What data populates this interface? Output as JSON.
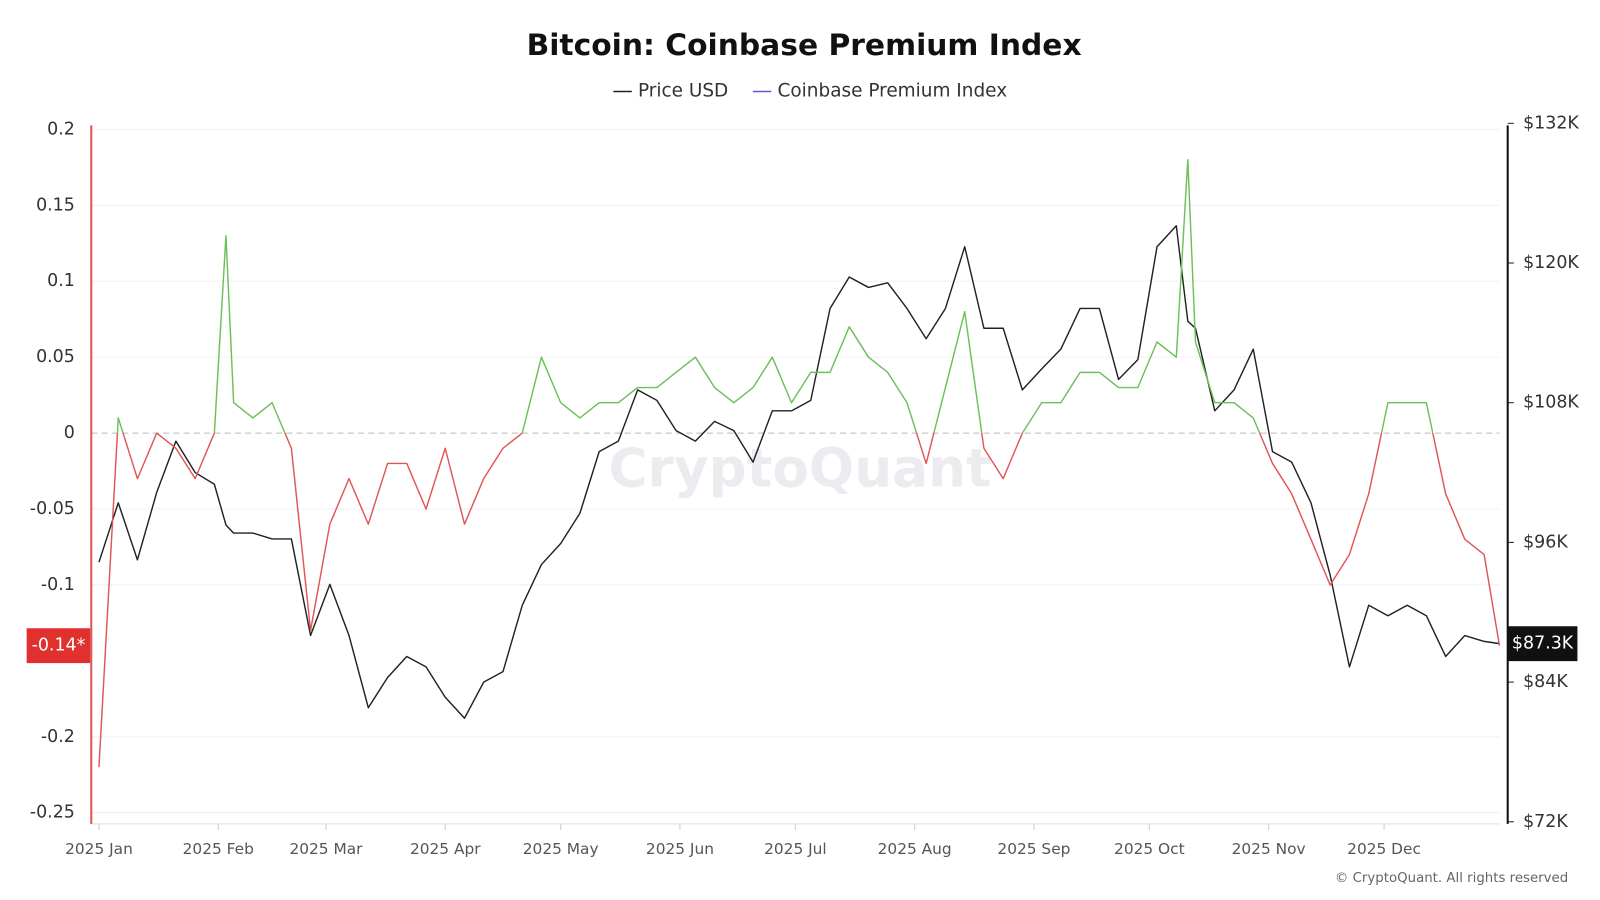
{
  "chart_data": {
    "type": "line",
    "title": "Bitcoin: Coinbase Premium Index",
    "watermark": "CryptoQuant",
    "copyright": "© CryptoQuant. All rights reserved",
    "y_marker_label": "-0.14*",
    "y2_marker_label": "$87.3K",
    "x": [
      0,
      5,
      10,
      15,
      20,
      25,
      30,
      33,
      35,
      40,
      45,
      50,
      55,
      60,
      65,
      70,
      75,
      80,
      85,
      90,
      95,
      100,
      105,
      110,
      115,
      120,
      125,
      130,
      135,
      140,
      145,
      150,
      155,
      160,
      165,
      170,
      175,
      180,
      185,
      190,
      195,
      200,
      205,
      210,
      215,
      220,
      225,
      230,
      235,
      240,
      245,
      250,
      255,
      260,
      265,
      270,
      275,
      280,
      283,
      285,
      290,
      295,
      300,
      305,
      310,
      315,
      320,
      325,
      330,
      335,
      340,
      345,
      350,
      355,
      360,
      364
    ],
    "xlim": [
      -2,
      364
    ],
    "xticks": [
      {
        "value": 0,
        "label": "2025 Jan"
      },
      {
        "value": 31,
        "label": "2025 Feb"
      },
      {
        "value": 59,
        "label": "2025 Mar"
      },
      {
        "value": 90,
        "label": "2025 Apr"
      },
      {
        "value": 120,
        "label": "2025 May"
      },
      {
        "value": 151,
        "label": "2025 Jun"
      },
      {
        "value": 181,
        "label": "2025 Jul"
      },
      {
        "value": 212,
        "label": "2025 Aug"
      },
      {
        "value": 243,
        "label": "2025 Sep"
      },
      {
        "value": 273,
        "label": "2025 Oct"
      },
      {
        "value": 304,
        "label": "2025 Nov"
      },
      {
        "value": 334,
        "label": "2025 Dec"
      }
    ],
    "ylim": [
      -0.256,
      0.204
    ],
    "yticks": [
      0.2,
      0.15,
      0.1,
      0.05,
      0,
      -0.05,
      -0.1,
      -0.2,
      -0.25
    ],
    "y2lim": [
      72000,
      132000
    ],
    "y2ticks": [
      {
        "value": 132000,
        "label": "$132K"
      },
      {
        "value": 120000,
        "label": "$120K"
      },
      {
        "value": 108000,
        "label": "$108K"
      },
      {
        "value": 96000,
        "label": "$96K"
      },
      {
        "value": 84000,
        "label": "$84K"
      },
      {
        "value": 72000,
        "label": "$72K"
      }
    ],
    "grid": true,
    "legend": "top",
    "series": [
      {
        "name": "Price USD",
        "color": "#222222",
        "axis": "y2",
        "values": [
          94300,
          99400,
          94500,
          100300,
          104700,
          102000,
          101000,
          97500,
          96800,
          96800,
          96300,
          96300,
          88000,
          92400,
          88000,
          81800,
          84400,
          86200,
          85300,
          82700,
          80900,
          84000,
          84900,
          90600,
          94100,
          95900,
          98500,
          103800,
          104700,
          109100,
          108200,
          105600,
          104700,
          106400,
          105600,
          102900,
          107300,
          107300,
          108200,
          116100,
          118800,
          117900,
          118300,
          116100,
          113500,
          116100,
          121400,
          114400,
          114400,
          109100,
          110900,
          112600,
          116100,
          116100,
          110000,
          111700,
          121400,
          123200,
          115000,
          114400,
          107300,
          109100,
          112600,
          103800,
          102900,
          99400,
          93200,
          85300,
          90600,
          89700,
          90600,
          89700,
          86200,
          88000,
          87500,
          87300
        ]
      },
      {
        "name": "Coinbase Premium Index",
        "color": "#5b5bd6",
        "positive_color": "#6dbf5a",
        "negative_color": "#e05555",
        "values": [
          -0.22,
          0.01,
          -0.03,
          0.0,
          -0.01,
          -0.03,
          0.0,
          0.13,
          0.02,
          0.01,
          0.02,
          -0.01,
          -0.13,
          -0.06,
          -0.03,
          -0.06,
          -0.02,
          -0.02,
          -0.05,
          -0.01,
          -0.06,
          -0.03,
          -0.01,
          0.0,
          0.05,
          0.02,
          0.01,
          0.02,
          0.02,
          0.03,
          0.03,
          0.04,
          0.05,
          0.03,
          0.02,
          0.03,
          0.05,
          0.02,
          0.04,
          0.04,
          0.07,
          0.05,
          0.04,
          0.02,
          -0.02,
          0.03,
          0.08,
          -0.01,
          -0.03,
          0.0,
          0.02,
          0.02,
          0.04,
          0.04,
          0.03,
          0.03,
          0.06,
          0.05,
          0.18,
          0.06,
          0.02,
          0.02,
          0.01,
          -0.02,
          -0.04,
          -0.07,
          -0.1,
          -0.08,
          -0.04,
          0.02,
          0.02,
          0.02,
          -0.04,
          -0.07,
          -0.08,
          -0.14
        ]
      }
    ]
  }
}
